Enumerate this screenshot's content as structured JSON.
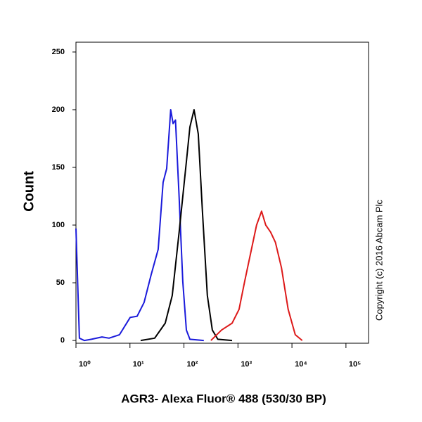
{
  "chart_data": {
    "type": "line",
    "xlabel": "AGR3- Alexa Fluor® 488 (530/30 BP)",
    "ylabel": "Count",
    "annotation": "Copyright (c) 2016 Abcam Plc",
    "xscale": "log",
    "xlim": [
      1,
      262144
    ],
    "xticks": [
      {
        "value": 1,
        "label": "10⁰"
      },
      {
        "value": 10,
        "label": "10¹"
      },
      {
        "value": 100,
        "label": "10²"
      },
      {
        "value": 1000,
        "label": "10³"
      },
      {
        "value": 10000,
        "label": "10⁴"
      },
      {
        "value": 100000,
        "label": "10⁵"
      }
    ],
    "ylim": [
      -2.4,
      258.5
    ],
    "yticks": [
      0,
      50,
      100,
      150,
      200,
      250
    ],
    "series": [
      {
        "name": "blue",
        "color": "#1a1adb",
        "x": [
          1,
          1.16,
          1.43,
          1.93,
          3.03,
          4.09,
          6.4,
          10.1,
          13.6,
          18.3,
          24.7,
          33.3,
          41.1,
          47.9,
          56.9,
          62.9,
          69.7,
          81.4,
          95.1,
          111,
          129,
          233
        ],
        "values": [
          97,
          2,
          0,
          1,
          3,
          2,
          5,
          20,
          21,
          33,
          57,
          79,
          137,
          149,
          200,
          188,
          191,
          124,
          51,
          9,
          1,
          0
        ]
      },
      {
        "name": "black",
        "color": "#000000",
        "x": [
          15.8,
          28.7,
          45,
          60.7,
          81.4,
          111,
          129,
          154,
          184,
          220,
          271,
          335,
          424,
          778
        ],
        "values": [
          0,
          2,
          15,
          39,
          94,
          155,
          185,
          200,
          179,
          112,
          39,
          9,
          1,
          0
        ]
      },
      {
        "name": "red",
        "color": "#dd1a1a",
        "x": [
          316,
          495,
          778,
          1050,
          1330,
          1780,
          2210,
          2740,
          3270,
          4020,
          4940,
          6400,
          8510,
          11500,
          15500
        ],
        "values": [
          0,
          9,
          15,
          27,
          51,
          79,
          100,
          112,
          100,
          94,
          85,
          63,
          27,
          5,
          0
        ]
      }
    ]
  }
}
